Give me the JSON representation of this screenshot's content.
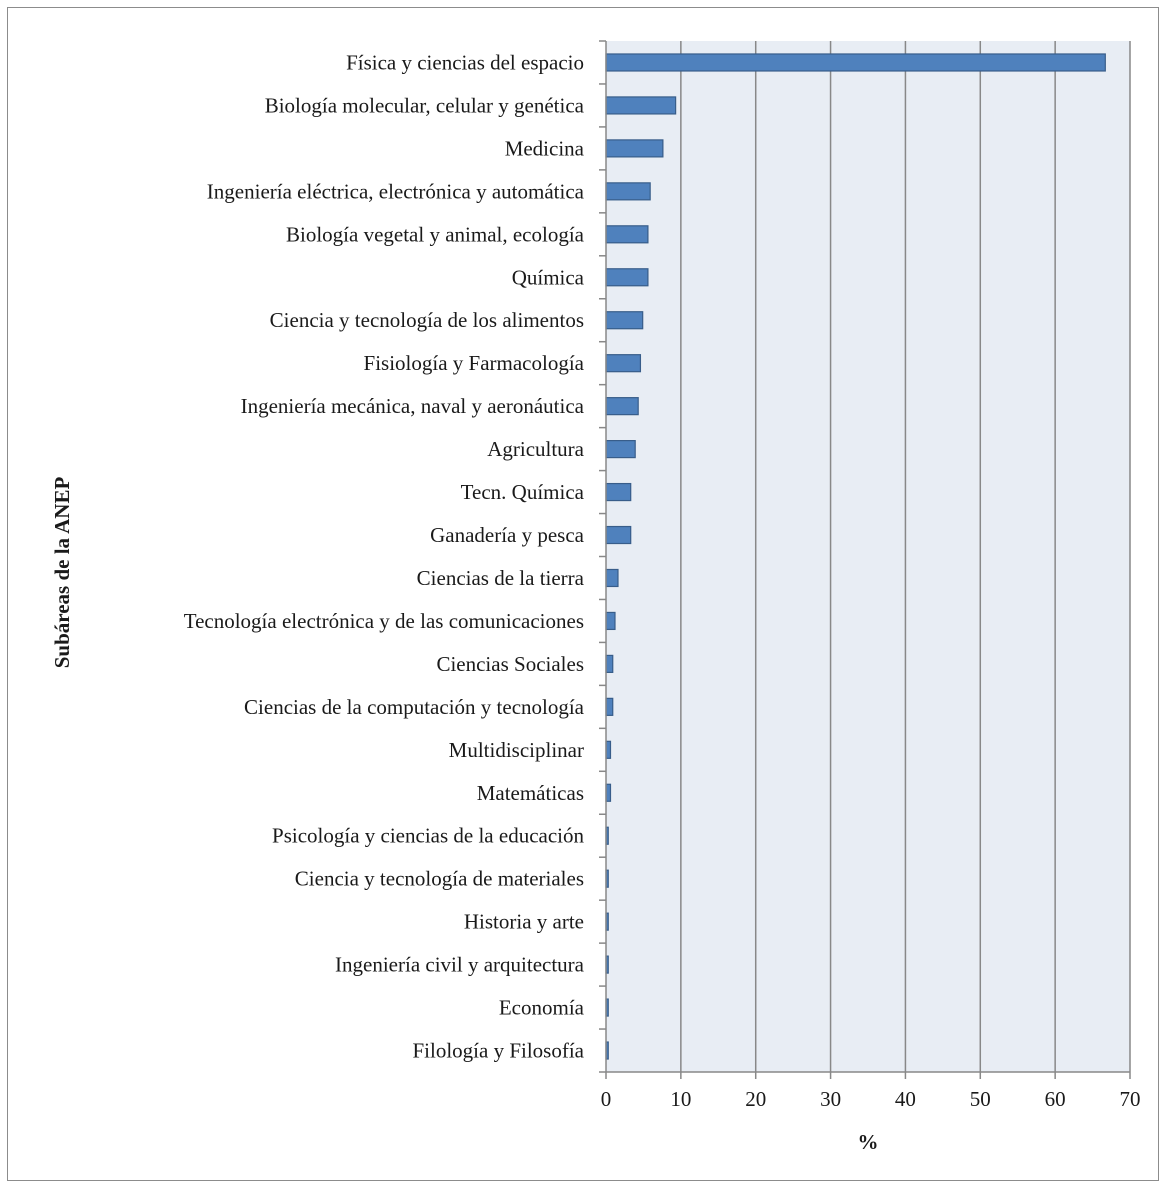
{
  "chart_data": {
    "type": "bar",
    "orientation": "horizontal",
    "categories": [
      "Física y ciencias del espacio",
      "Biología molecular, celular y genética",
      "Medicina",
      "Ingeniería eléctrica, electrónica y automática",
      "Biología vegetal y animal, ecología",
      "Química",
      "Ciencia y tecnología de los alimentos",
      "Fisiología y Farmacología",
      "Ingeniería mecánica, naval y aeronáutica",
      "Agricultura",
      "Tecn. Química",
      "Ganadería y pesca",
      "Ciencias de la tierra",
      "Tecnología electrónica y de las comunicaciones",
      "Ciencias Sociales",
      "Ciencias de la computación y tecnología",
      "Multidisciplinar",
      "Matemáticas",
      "Psicología y ciencias de la educación",
      "Ciencia y tecnología de materiales",
      "Historia y arte",
      "Ingeniería civil y arquitectura",
      "Economía",
      "Filología y Filosofía"
    ],
    "values": [
      66.7,
      9.3,
      7.6,
      5.9,
      5.6,
      5.6,
      4.9,
      4.6,
      4.3,
      3.9,
      3.3,
      3.3,
      1.6,
      1.2,
      0.9,
      0.9,
      0.6,
      0.6,
      0.3,
      0.3,
      0.3,
      0.3,
      0.3,
      0.3
    ],
    "xlabel": "%",
    "ylabel": "Subáreas de la ANEP",
    "xlim": [
      0,
      70
    ],
    "xticks": [
      0,
      10,
      20,
      30,
      40,
      50,
      60,
      70
    ],
    "grid": "vertical",
    "legend": "none",
    "colors": {
      "bar_fill": "#4f81bd",
      "bar_stroke": "#385d8a",
      "plot_background": "#e8edf4",
      "gridline": "#888888"
    }
  }
}
